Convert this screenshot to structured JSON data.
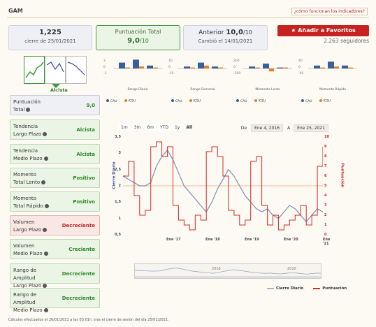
{
  "header": {
    "ticker": "GAM",
    "help_link": "¿cómo funcionan los indicadores?"
  },
  "cards": {
    "close_value": "1,225",
    "close_date": "cierre de 25/01/2021",
    "score_label": "Puntuación Total",
    "score_value": "9,0",
    "score_max": "/10",
    "prev_label": "Anterior",
    "prev_value": "10,0",
    "prev_max": "/10",
    "prev_change": "Cambió el 14/01/2021"
  },
  "favorites": {
    "button_label": "Añadir a Favoritos",
    "followers": "2.263 seguidores"
  },
  "trend": {
    "label": "Alcista"
  },
  "indicators": [
    {
      "name_line1": "Puntuación",
      "name_line2": "Total",
      "value": "9,0",
      "status": "score"
    },
    {
      "name_line1": "Tendencia",
      "name_line2": "Largo Plazo",
      "value": "Alcista",
      "status": "green"
    },
    {
      "name_line1": "Tendencia",
      "name_line2": "Medio Plazo",
      "value": "Alcista",
      "status": "green"
    },
    {
      "name_line1": "Momento",
      "name_line2": "Total Lento",
      "value": "Positivo",
      "status": "green"
    },
    {
      "name_line1": "Momento",
      "name_line2": "Total Rápido",
      "value": "Positivo",
      "status": "green"
    },
    {
      "name_line1": "Volumen",
      "name_line2": "Largo Plazo",
      "value": "Decreciente",
      "status": "red"
    },
    {
      "name_line1": "Volumen",
      "name_line2": "Medio Plazo",
      "value": "Creciente",
      "status": "green"
    },
    {
      "name_line1": "Rango de Amplitud",
      "name_line2": "Largo Plazo",
      "value": "Decreciente",
      "status": "green"
    },
    {
      "name_line1": "Rango de Amplitud",
      "name_line2": "Medio Plazo",
      "value": "Decreciente",
      "status": "green"
    }
  ],
  "mini_charts": [
    {
      "label": "Rango Diario",
      "ticks": [
        "3",
        "0",
        "-3"
      ],
      "cau": [
        0.6,
        0.9,
        0.3
      ],
      "icsu": [
        0.1,
        0.2,
        0.1
      ]
    },
    {
      "label": "Rango Semanal",
      "ticks": [
        "10",
        "0",
        "-10"
      ],
      "cau": [
        0.2,
        0.6,
        0.2
      ],
      "icsu": [
        0.1,
        0.3,
        0.1
      ]
    },
    {
      "label": "Momento Lento",
      "ticks": [
        "200",
        "0",
        "-200"
      ],
      "cau": [
        0.2,
        0.5,
        0.1
      ],
      "icsu": [
        0.1,
        -0.3,
        0.1
      ]
    },
    {
      "label": "Momento Rápido",
      "ticks": [
        "40",
        "0",
        "-40"
      ],
      "cau": [
        0.3,
        0.7,
        0.3
      ],
      "icsu": [
        0.1,
        0.2,
        0.1
      ]
    }
  ],
  "mini_legend": {
    "cau": "CAU",
    "icsu": "ICSU"
  },
  "main_chart": {
    "zoom_options": [
      "1m",
      "3m",
      "6m",
      "YTD",
      "1y",
      "All"
    ],
    "selected_zoom": "All",
    "range_from_label": "De",
    "range_from": "Ene 4, 2016",
    "range_to_label": "A",
    "range_to": "Ene 25, 2021",
    "left_axis_label": "Cierre Diario",
    "right_axis_label": "Puntuación",
    "navigator_ticks": [
      "2018",
      "2020"
    ]
  },
  "chart_data": {
    "type": "line",
    "x_labels": [
      "Ene '17",
      "Ene '18",
      "Ene '19",
      "Ene '20",
      "Ene '21"
    ],
    "y_left_ticks": [
      "3,5",
      "3",
      "2,5",
      "2",
      "1,5",
      "1",
      "0,5"
    ],
    "y_right_ticks": [
      "10",
      "9",
      "8",
      "7",
      "6",
      "5",
      "4",
      "3",
      "2",
      "1",
      "0"
    ],
    "ylim_left": [
      0.5,
      3.5
    ],
    "ylim_right": [
      0,
      10
    ],
    "series": [
      {
        "name": "Cierre Diario",
        "color": "#7f8fb0",
        "values": [
          2.3,
          2.2,
          2.1,
          2.0,
          2.0,
          2.1,
          2.6,
          2.9,
          3.1,
          2.8,
          2.4,
          2.0,
          1.8,
          1.6,
          1.4,
          1.2,
          1.5,
          1.9,
          2.2,
          2.5,
          2.3,
          2.0,
          1.7,
          1.5,
          1.3,
          1.2,
          1.3,
          1.1,
          1.0,
          1.2,
          1.4,
          1.3,
          1.1,
          0.9,
          1.1,
          1.3,
          1.2
        ]
      },
      {
        "name": "Puntuación",
        "color": "#d42a2a",
        "values": [
          6.0,
          7.5,
          4.0,
          2.0,
          2.5,
          9.0,
          9.5,
          8.0,
          9.0,
          3.0,
          1.5,
          1.0,
          0.5,
          2.0,
          1.5,
          8.5,
          9.0,
          8.0,
          6.0,
          2.5,
          2.0,
          1.0,
          1.5,
          7.5,
          8.0,
          3.0,
          1.0,
          2.0,
          0.5,
          1.0,
          1.5,
          2.0,
          3.0,
          1.0,
          2.0,
          7.0,
          9.0
        ]
      }
    ],
    "reference_line": 2.0,
    "legend": [
      "Cierre Diario",
      "Puntuación"
    ]
  },
  "footnote": "Cálculos efectuados el 26/01/2021 a las 03:01h. tras el cierre de sesión del día 25/01/2021.",
  "colors": {
    "accent": "#c62222",
    "green": "#2c8a25",
    "blue": "#3b4a99"
  }
}
